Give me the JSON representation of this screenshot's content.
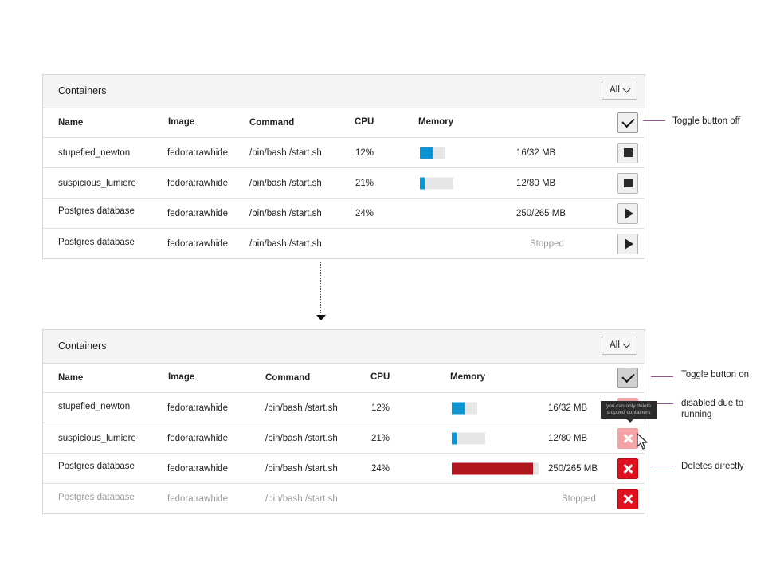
{
  "panel_title": "Containers",
  "filter": "All",
  "columns": {
    "name": "Name",
    "image": "Image",
    "command": "Command",
    "cpu": "CPU",
    "memory": "Memory"
  },
  "before": {
    "rows": [
      {
        "name": "stupefied_newton",
        "image": "fedora:rawhide",
        "command": "/bin/bash /start.sh",
        "cpu": "12%",
        "memory_fraction": 0.5,
        "memory": "16/32 MB",
        "action": "stop"
      },
      {
        "name": "suspicious_lumiere",
        "image": "fedora:rawhide",
        "command": "/bin/bash /start.sh",
        "cpu": "21%",
        "memory_fraction": 0.15,
        "memory": "12/80 MB",
        "action": "stop"
      },
      {
        "name": "Postgres database",
        "image": "fedora:rawhide",
        "command": "/bin/bash /start.sh",
        "cpu": "24%",
        "memory": "250/265 MB",
        "action": "play"
      },
      {
        "name": "Postgres database",
        "image": "fedora:rawhide",
        "command": "/bin/bash /start.sh",
        "cpu": "",
        "memory": "Stopped",
        "action": "play"
      }
    ]
  },
  "after": {
    "rows": [
      {
        "name": "stupefied_newton",
        "image": "fedora:rawhide",
        "command": "/bin/bash /start.sh",
        "cpu": "12%",
        "memory_fraction": 0.5,
        "memory": "16/32 MB",
        "action": "delete-disabled"
      },
      {
        "name": "suspicious_lumiere",
        "image": "fedora:rawhide",
        "command": "/bin/bash /start.sh",
        "cpu": "21%",
        "memory_fraction": 0.15,
        "memory": "12/80 MB",
        "action": "delete-disabled"
      },
      {
        "name": "Postgres database",
        "image": "fedora:rawhide",
        "command": "/bin/bash /start.sh",
        "cpu": "24%",
        "memory_fraction": 0.94,
        "memory": "250/265 MB",
        "action": "delete"
      },
      {
        "name": "Postgres database",
        "image": "fedora:rawhide",
        "command": "/bin/bash /start.sh",
        "cpu": "",
        "memory": "Stopped",
        "action": "delete",
        "muted": true
      }
    ]
  },
  "annotations": {
    "toggle_off": "Toggle button off",
    "toggle_on": "Toggle button on",
    "disabled_line1": "disabled due to",
    "disabled_line2": "running",
    "deletes": "Deletes directly"
  },
  "tooltip": {
    "line1": "you can only delete",
    "line2": "stopped containers"
  },
  "colors": {
    "memory_bar": "#0e96d3",
    "memory_bar_full": "#b0141d",
    "delete": "#e0101f",
    "delete_disabled": "#f3a2a5"
  },
  "icons": {
    "toggle": "check-icon",
    "stop": "stop-icon",
    "play": "play-icon",
    "delete": "close-icon",
    "filter": "chevron-down-icon"
  }
}
